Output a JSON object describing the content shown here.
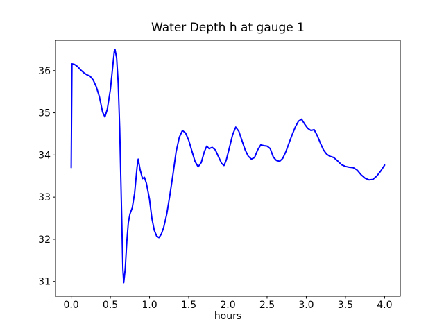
{
  "figure": {
    "background": "#ffffff",
    "text_color": "#000000",
    "spine_color": "#000000"
  },
  "chart_data": {
    "type": "line",
    "title": "Water Depth h at gauge 1",
    "xlabel": "hours",
    "ylabel": "",
    "xlim": [
      -0.2,
      4.2
    ],
    "ylim": [
      30.65,
      36.72
    ],
    "grid": false,
    "legend_position": "none",
    "xticks": {
      "values": [
        0,
        0.5,
        1,
        1.5,
        2,
        2.5,
        3,
        3.5,
        4
      ],
      "labels": [
        "0.0",
        "0.5",
        "1.0",
        "1.5",
        "2.0",
        "2.5",
        "3.0",
        "3.5",
        "4.0"
      ]
    },
    "yticks": {
      "values": [
        31,
        32,
        33,
        34,
        35,
        36
      ],
      "labels": [
        "31",
        "32",
        "33",
        "34",
        "35",
        "36"
      ]
    },
    "series": [
      {
        "name": "water-depth-h",
        "color": "#0000ff",
        "x": [
          0.0,
          0.01,
          0.04,
          0.08,
          0.12,
          0.16,
          0.2,
          0.24,
          0.28,
          0.32,
          0.36,
          0.4,
          0.43,
          0.46,
          0.5,
          0.53,
          0.55,
          0.56,
          0.58,
          0.6,
          0.62,
          0.64,
          0.66,
          0.67,
          0.69,
          0.71,
          0.73,
          0.75,
          0.78,
          0.81,
          0.84,
          0.855,
          0.88,
          0.91,
          0.935,
          0.96,
          1.0,
          1.03,
          1.06,
          1.09,
          1.12,
          1.15,
          1.18,
          1.22,
          1.26,
          1.3,
          1.34,
          1.38,
          1.42,
          1.46,
          1.5,
          1.54,
          1.58,
          1.62,
          1.66,
          1.7,
          1.73,
          1.76,
          1.8,
          1.84,
          1.88,
          1.92,
          1.95,
          1.98,
          2.02,
          2.06,
          2.1,
          2.14,
          2.18,
          2.22,
          2.26,
          2.3,
          2.34,
          2.38,
          2.42,
          2.46,
          2.5,
          2.54,
          2.58,
          2.62,
          2.66,
          2.7,
          2.74,
          2.78,
          2.82,
          2.86,
          2.9,
          2.94,
          2.98,
          3.02,
          3.06,
          3.1,
          3.14,
          3.18,
          3.22,
          3.26,
          3.3,
          3.35,
          3.4,
          3.45,
          3.5,
          3.55,
          3.6,
          3.65,
          3.7,
          3.75,
          3.8,
          3.85,
          3.9,
          3.95,
          4.0
        ],
        "y": [
          33.7,
          36.16,
          36.15,
          36.1,
          36.02,
          35.95,
          35.9,
          35.87,
          35.78,
          35.62,
          35.38,
          35.02,
          34.9,
          35.08,
          35.55,
          36.1,
          36.45,
          36.5,
          36.3,
          35.7,
          34.6,
          32.9,
          31.3,
          30.97,
          31.3,
          31.95,
          32.4,
          32.6,
          32.75,
          33.1,
          33.7,
          33.9,
          33.65,
          33.44,
          33.47,
          33.33,
          32.95,
          32.5,
          32.22,
          32.08,
          32.04,
          32.12,
          32.28,
          32.6,
          33.05,
          33.55,
          34.08,
          34.42,
          34.58,
          34.52,
          34.35,
          34.1,
          33.85,
          33.72,
          33.82,
          34.08,
          34.21,
          34.15,
          34.18,
          34.12,
          33.96,
          33.8,
          33.75,
          33.88,
          34.18,
          34.48,
          34.66,
          34.56,
          34.34,
          34.12,
          33.97,
          33.9,
          33.94,
          34.12,
          34.24,
          34.22,
          34.21,
          34.15,
          33.95,
          33.87,
          33.85,
          33.92,
          34.08,
          34.28,
          34.48,
          34.66,
          34.8,
          34.85,
          34.73,
          34.63,
          34.58,
          34.6,
          34.46,
          34.28,
          34.12,
          34.02,
          33.97,
          33.94,
          33.86,
          33.77,
          33.73,
          33.71,
          33.7,
          33.64,
          33.53,
          33.45,
          33.41,
          33.42,
          33.5,
          33.62,
          33.76
        ]
      }
    ]
  }
}
